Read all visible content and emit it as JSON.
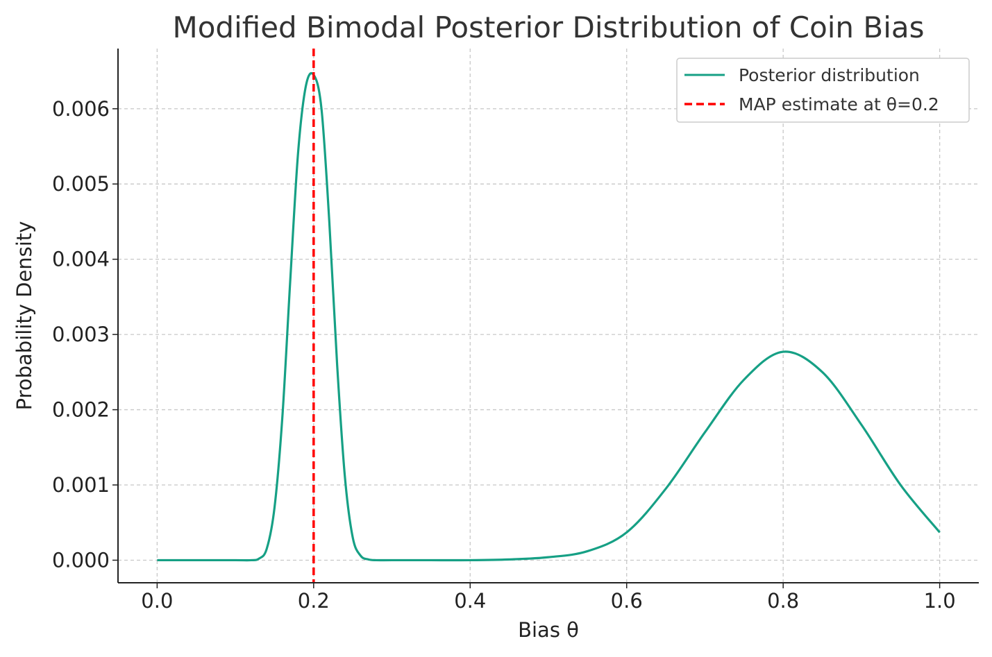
{
  "chart_data": {
    "type": "line",
    "title": "Modified Bimodal Posterior Distribution of Coin Bias",
    "xlabel": "Bias θ",
    "ylabel": "Probability Density",
    "xlim": [
      -0.05,
      1.05
    ],
    "ylim": [
      -0.0003,
      0.0068
    ],
    "xticks": [
      0.0,
      0.2,
      0.4,
      0.6,
      0.8,
      1.0
    ],
    "xtick_labels": [
      "0.0",
      "0.2",
      "0.4",
      "0.6",
      "0.8",
      "1.0"
    ],
    "yticks": [
      0.0,
      0.001,
      0.002,
      0.003,
      0.004,
      0.005,
      0.006
    ],
    "ytick_labels": [
      "0.000",
      "0.001",
      "0.002",
      "0.003",
      "0.004",
      "0.005",
      "0.006"
    ],
    "grid": true,
    "legend_position": "top-right",
    "series": [
      {
        "name": "Posterior distribution",
        "color": "#16a085",
        "style": "solid",
        "x": [
          0.0,
          0.05,
          0.1,
          0.12,
          0.13,
          0.14,
          0.15,
          0.16,
          0.17,
          0.18,
          0.19,
          0.2,
          0.21,
          0.22,
          0.23,
          0.24,
          0.25,
          0.26,
          0.27,
          0.28,
          0.3,
          0.35,
          0.4,
          0.45,
          0.5,
          0.55,
          0.6,
          0.65,
          0.7,
          0.75,
          0.8,
          0.85,
          0.9,
          0.95,
          1.0
        ],
        "y": [
          0.0,
          0.0,
          0.0,
          0.0,
          2e-05,
          0.00015,
          0.0007,
          0.0019,
          0.0037,
          0.0054,
          0.0063,
          0.00645,
          0.006,
          0.0045,
          0.0026,
          0.0011,
          0.0003,
          6e-05,
          1e-05,
          0.0,
          0.0,
          0.0,
          0.0,
          1e-05,
          4e-05,
          0.00012,
          0.00037,
          0.00095,
          0.0017,
          0.0024,
          0.00277,
          0.0025,
          0.0018,
          0.001,
          0.00037
        ]
      },
      {
        "name": "MAP estimate at θ=0.2",
        "color": "#ff0000",
        "style": "dashed",
        "x_value": 0.2
      }
    ]
  }
}
